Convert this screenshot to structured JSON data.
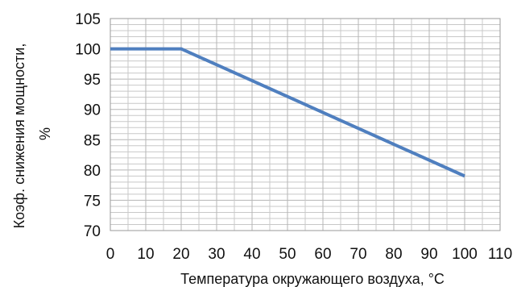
{
  "chart_data": {
    "type": "line",
    "title": "",
    "xlabel": "Температура окружающего воздуха, °C",
    "ylabel_lines": [
      "Коэф. снижения мощности,",
      "%"
    ],
    "xlim": [
      0,
      110
    ],
    "ylim": [
      70,
      105
    ],
    "x_ticks": [
      "0",
      "10",
      "20",
      "30",
      "40",
      "50",
      "60",
      "70",
      "80",
      "90",
      "100",
      "110"
    ],
    "y_ticks": [
      "70",
      "75",
      "80",
      "85",
      "90",
      "95",
      "100",
      "105"
    ],
    "x_major_step": 10,
    "x_minor_step": 5,
    "y_major_step": 5,
    "y_minor_step": 1,
    "grid": true,
    "legend": "none",
    "series": [
      {
        "color": "#4f7fbf",
        "x": [
          0,
          20,
          100
        ],
        "y": [
          100,
          100,
          79
        ]
      }
    ]
  }
}
